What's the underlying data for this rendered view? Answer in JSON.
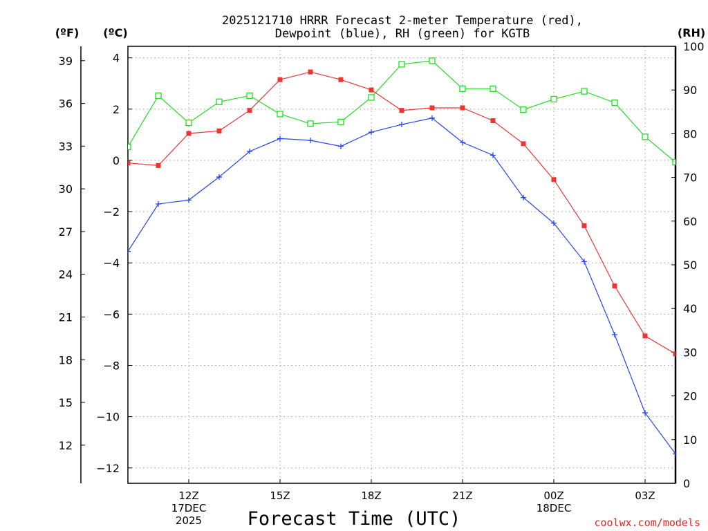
{
  "chart_data": {
    "type": "line",
    "title_line1": "2025121710 HRRR Forecast 2-meter Temperature (red),",
    "title_line2": "Dewpoint (blue), RH (green) for KGTB",
    "xlabel": "Forecast Time (UTC)",
    "credit": "coolwx.com/models",
    "units": {
      "fahrenheit": "(ºF)",
      "celsius": "(ºC)",
      "rh": "(RH)"
    },
    "x_range_hours": [
      10,
      28
    ],
    "celsius_range": [
      -12.6,
      4.45
    ],
    "rh_range": [
      0,
      100
    ],
    "x_ticks": [
      {
        "hour": 12,
        "lines": [
          "12Z",
          "17DEC",
          "2025"
        ]
      },
      {
        "hour": 15,
        "lines": [
          "15Z"
        ]
      },
      {
        "hour": 18,
        "lines": [
          "18Z"
        ]
      },
      {
        "hour": 21,
        "lines": [
          "21Z"
        ]
      },
      {
        "hour": 24,
        "lines": [
          "00Z",
          "18DEC"
        ]
      },
      {
        "hour": 27,
        "lines": [
          "03Z"
        ]
      }
    ],
    "celsius_ticks": [
      {
        "value": 4,
        "label": "4"
      },
      {
        "value": 2,
        "label": "2"
      },
      {
        "value": 0,
        "label": "0"
      },
      {
        "value": -2,
        "label": "−2"
      },
      {
        "value": -4,
        "label": "−4"
      },
      {
        "value": -6,
        "label": "−6"
      },
      {
        "value": -8,
        "label": "−8"
      },
      {
        "value": -10,
        "label": "−10"
      },
      {
        "value": -12,
        "label": "−12"
      }
    ],
    "fahrenheit_ticks": [
      {
        "value": 39,
        "label": "39"
      },
      {
        "value": 36,
        "label": "36"
      },
      {
        "value": 33,
        "label": "33"
      },
      {
        "value": 30,
        "label": "30"
      },
      {
        "value": 27,
        "label": "27"
      },
      {
        "value": 24,
        "label": "24"
      },
      {
        "value": 21,
        "label": "21"
      },
      {
        "value": 18,
        "label": "18"
      },
      {
        "value": 15,
        "label": "15"
      },
      {
        "value": 12,
        "label": "12"
      }
    ],
    "rh_ticks": [
      {
        "value": 100,
        "label": "100"
      },
      {
        "value": 90,
        "label": "90"
      },
      {
        "value": 80,
        "label": "80"
      },
      {
        "value": 70,
        "label": "70"
      },
      {
        "value": 60,
        "label": "60"
      },
      {
        "value": 50,
        "label": "50"
      },
      {
        "value": 40,
        "label": "40"
      },
      {
        "value": 30,
        "label": "30"
      },
      {
        "value": 20,
        "label": "20"
      },
      {
        "value": 10,
        "label": "10"
      },
      {
        "value": 0,
        "label": "0"
      }
    ],
    "series": [
      {
        "name": "Temperature",
        "unit": "C",
        "axis": "celsius",
        "color": "#ee3333",
        "marker": "filled-square",
        "x": [
          10,
          11,
          12,
          13,
          14,
          15,
          16,
          17,
          18,
          19,
          20,
          21,
          22,
          23,
          24,
          25,
          26,
          27,
          28
        ],
        "values": [
          -0.1,
          -0.2,
          1.05,
          1.15,
          1.95,
          3.15,
          3.45,
          3.15,
          2.75,
          1.95,
          2.05,
          2.05,
          1.55,
          0.65,
          -0.75,
          -2.55,
          -4.9,
          -6.85,
          -7.55
        ]
      },
      {
        "name": "Dewpoint",
        "unit": "C",
        "axis": "celsius",
        "color": "#2244ee",
        "marker": "plus",
        "x": [
          10,
          11,
          12,
          13,
          14,
          15,
          16,
          17,
          18,
          19,
          20,
          21,
          22,
          23,
          24,
          25,
          26,
          27,
          28
        ],
        "values": [
          -3.55,
          -1.7,
          -1.55,
          -0.65,
          0.35,
          0.85,
          0.78,
          0.55,
          1.1,
          1.4,
          1.65,
          0.7,
          0.2,
          -1.45,
          -2.45,
          -3.95,
          -6.8,
          -9.85,
          -11.45
        ]
      },
      {
        "name": "RH",
        "unit": "%",
        "axis": "rh",
        "color": "#22dd22",
        "marker": "open-square",
        "x": [
          10,
          11,
          12,
          13,
          14,
          15,
          16,
          17,
          18,
          19,
          20,
          21,
          22,
          23,
          24,
          25,
          26,
          27,
          28
        ],
        "values": [
          77,
          88.7,
          82.5,
          87.3,
          88.7,
          84.5,
          82.3,
          82.7,
          88.3,
          95.9,
          96.7,
          90.3,
          90.3,
          85.5,
          87.9,
          89.7,
          87.1,
          79.3,
          73.5
        ]
      }
    ]
  }
}
